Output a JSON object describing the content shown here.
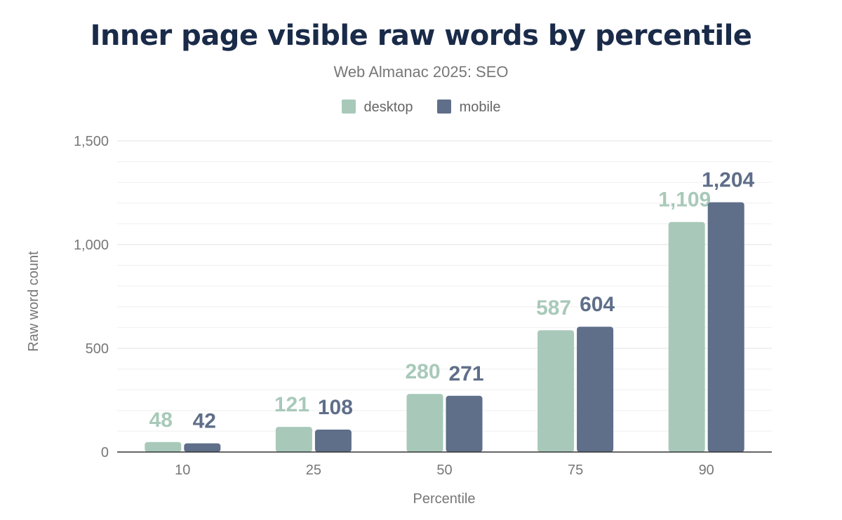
{
  "chart_data": {
    "type": "bar",
    "title": "Inner page visible raw words by percentile",
    "subtitle": "Web Almanac 2025: SEO",
    "xlabel": "Percentile",
    "ylabel": "Raw word count",
    "categories": [
      "10",
      "25",
      "50",
      "75",
      "90"
    ],
    "series": [
      {
        "name": "desktop",
        "color": "#a8c9b9",
        "values": [
          48,
          121,
          280,
          587,
          1109
        ],
        "labels": [
          "48",
          "121",
          "280",
          "587",
          "1,109"
        ]
      },
      {
        "name": "mobile",
        "color": "#5f6e89",
        "values": [
          42,
          108,
          271,
          604,
          1204
        ],
        "labels": [
          "42",
          "108",
          "271",
          "604",
          "1,204"
        ]
      }
    ],
    "ylim": [
      0,
      1500
    ],
    "yticks": [
      0,
      500,
      1000,
      1500
    ],
    "ytick_labels": [
      "0",
      "500",
      "1,000",
      "1,500"
    ],
    "grid": true,
    "legend": "top-center"
  }
}
